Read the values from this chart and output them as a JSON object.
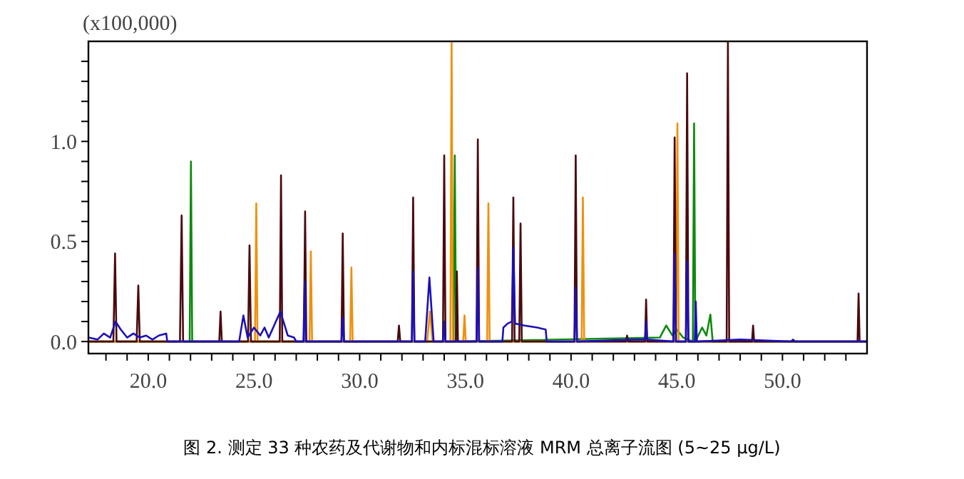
{
  "chart_data": {
    "type": "line",
    "title": "图 2. 测定 33 种农药及代谢物和内标混标溶液 MRM 总离子流图 (5~25 μg/L)",
    "ylabel": "(x100,000)",
    "xlim": [
      17.17,
      54.0
    ],
    "ylim": [
      -0.06,
      1.5
    ],
    "xticks": [
      {
        "value": 18,
        "label": null
      },
      {
        "value": 19,
        "label": null
      },
      {
        "value": 20,
        "label": "20.0"
      },
      {
        "value": 21,
        "label": null
      },
      {
        "value": 22,
        "label": null
      },
      {
        "value": 23,
        "label": null
      },
      {
        "value": 24,
        "label": null
      },
      {
        "value": 25,
        "label": "25.0"
      },
      {
        "value": 26,
        "label": null
      },
      {
        "value": 27,
        "label": null
      },
      {
        "value": 28,
        "label": null
      },
      {
        "value": 29,
        "label": null
      },
      {
        "value": 30,
        "label": "30.0"
      },
      {
        "value": 31,
        "label": null
      },
      {
        "value": 32,
        "label": null
      },
      {
        "value": 33,
        "label": null
      },
      {
        "value": 34,
        "label": null
      },
      {
        "value": 35,
        "label": "35.0"
      },
      {
        "value": 36,
        "label": null
      },
      {
        "value": 37,
        "label": null
      },
      {
        "value": 38,
        "label": null
      },
      {
        "value": 39,
        "label": null
      },
      {
        "value": 40,
        "label": "40.0"
      },
      {
        "value": 41,
        "label": null
      },
      {
        "value": 42,
        "label": null
      },
      {
        "value": 43,
        "label": null
      },
      {
        "value": 44,
        "label": null
      },
      {
        "value": 45,
        "label": "45.0"
      },
      {
        "value": 46,
        "label": null
      },
      {
        "value": 47,
        "label": null
      },
      {
        "value": 48,
        "label": null
      },
      {
        "value": 49,
        "label": null
      },
      {
        "value": 50,
        "label": "50.0"
      },
      {
        "value": 51,
        "label": null
      },
      {
        "value": 52,
        "label": null
      },
      {
        "value": 53,
        "label": null
      }
    ],
    "yticks": [
      {
        "value": 0,
        "label": "0.0"
      },
      {
        "value": 0.1,
        "label": null
      },
      {
        "value": 0.2,
        "label": null
      },
      {
        "value": 0.3,
        "label": null
      },
      {
        "value": 0.4,
        "label": null
      },
      {
        "value": 0.5,
        "label": "0.5"
      },
      {
        "value": 0.6,
        "label": null
      },
      {
        "value": 0.7,
        "label": null
      },
      {
        "value": 0.8,
        "label": null
      },
      {
        "value": 0.9,
        "label": null
      },
      {
        "value": 1.0,
        "label": "1.0"
      },
      {
        "value": 1.1,
        "label": null
      },
      {
        "value": 1.2,
        "label": null
      },
      {
        "value": 1.3,
        "label": null
      },
      {
        "value": 1.4,
        "label": null
      }
    ],
    "line_style": "solid",
    "series": [
      {
        "color": "#1c10b8",
        "x": [
          17.17,
          17.6,
          17.9,
          18.2,
          18.45,
          18.7,
          19.0,
          19.3,
          19.6,
          19.9,
          20.2,
          20.5,
          20.85,
          20.9,
          24.3,
          24.5,
          24.7,
          25.0,
          25.3,
          25.5,
          25.7,
          26.25,
          26.6,
          26.9,
          27.0,
          27.34,
          27.4,
          27.46,
          29.14,
          29.2,
          29.26,
          32.47,
          32.53,
          32.59,
          33.1,
          33.3,
          33.5,
          33.94,
          34.0,
          34.06,
          35.53,
          35.59,
          35.65,
          36.75,
          36.8,
          37.0,
          37.2,
          37.27,
          37.35,
          37.8,
          38.4,
          38.8,
          38.85,
          40.16,
          40.22,
          40.28,
          43.0,
          43.5,
          43.55,
          43.6,
          44.84,
          44.9,
          44.96,
          45.43,
          45.49,
          45.55,
          45.85,
          45.9,
          45.95,
          48.0,
          50.4,
          50.5,
          50.6,
          54.0
        ],
        "values": [
          0.02,
          0.01,
          0.04,
          0.02,
          0.1,
          0.06,
          0.02,
          0.04,
          0.02,
          0.03,
          0.01,
          0.03,
          0.04,
          0,
          0,
          0.13,
          0.02,
          0.07,
          0.03,
          0.07,
          0.02,
          0.15,
          0.03,
          0.02,
          0,
          0,
          0.3,
          0,
          0,
          0.12,
          0,
          0,
          0.35,
          0,
          0,
          0.32,
          0,
          0,
          0.1,
          0,
          0,
          0.37,
          0,
          0,
          0.07,
          0.09,
          0.1,
          0.47,
          0.09,
          0.08,
          0.07,
          0.06,
          0,
          0,
          0.27,
          0,
          0.01,
          0.01,
          0.1,
          0.01,
          0,
          0.44,
          0,
          0,
          0.4,
          0,
          0,
          0.2,
          0,
          0.01,
          0,
          0.01,
          0,
          0
        ]
      },
      {
        "color": "#0e8a0e",
        "x": [
          17.17,
          21.96,
          22.02,
          22.08,
          34.44,
          34.5,
          34.56,
          44.2,
          44.5,
          44.8,
          45.0,
          45.3,
          45.76,
          45.82,
          45.88,
          46.2,
          46.4,
          46.59,
          46.7,
          54.0
        ],
        "values": [
          0,
          0,
          0.9,
          0,
          0,
          0.93,
          0,
          0.02,
          0.08,
          0.03,
          0.06,
          0.02,
          0,
          1.09,
          0,
          0.07,
          0.03,
          0.135,
          0,
          0
        ]
      },
      {
        "color": "#f0900c",
        "x": [
          17.17,
          25.05,
          25.11,
          25.17,
          27.63,
          27.69,
          27.75,
          29.55,
          29.61,
          29.67,
          33.2,
          33.32,
          33.45,
          34.29,
          34.35,
          34.41,
          34.9,
          34.96,
          35.02,
          36.03,
          36.09,
          36.15,
          40.5,
          40.56,
          40.62,
          44.97,
          45.03,
          45.09,
          54.0
        ],
        "values": [
          0,
          0,
          0.69,
          0,
          0,
          0.45,
          0,
          0,
          0.37,
          0,
          0,
          0.15,
          0,
          0,
          1.5,
          0,
          0,
          0.13,
          0,
          0,
          0.69,
          0,
          0,
          0.72,
          0,
          0,
          1.09,
          0,
          0
        ]
      },
      {
        "color": "#4a0a0e",
        "x": [
          17.17,
          18.35,
          18.43,
          18.5,
          19.45,
          19.53,
          19.6,
          21.5,
          21.58,
          21.65,
          23.36,
          23.42,
          23.48,
          24.72,
          24.79,
          24.86,
          26.22,
          26.28,
          26.34,
          27.36,
          27.42,
          27.48,
          29.14,
          29.2,
          29.26,
          31.8,
          31.86,
          31.92,
          32.47,
          32.53,
          32.59,
          33.94,
          34.0,
          34.06,
          34.55,
          34.6,
          34.65,
          35.53,
          35.59,
          35.65,
          37.21,
          37.27,
          37.33,
          37.55,
          37.61,
          37.67,
          40.16,
          40.22,
          40.28,
          42.6,
          42.65,
          42.7,
          43.5,
          43.55,
          43.6,
          44.84,
          44.9,
          44.96,
          45.43,
          45.49,
          45.55,
          47.36,
          47.42,
          47.48,
          48.56,
          48.61,
          48.66,
          53.55,
          53.6,
          53.65,
          54.0
        ],
        "values": [
          0,
          0,
          0.44,
          0,
          0,
          0.28,
          0,
          0,
          0.63,
          0,
          0,
          0.15,
          0,
          0,
          0.48,
          0,
          0,
          0.83,
          0,
          0,
          0.65,
          0,
          0,
          0.54,
          0,
          0,
          0.08,
          0,
          0,
          0.72,
          0,
          0,
          0.93,
          0,
          0,
          0.35,
          0,
          0,
          1.01,
          0,
          0,
          0.72,
          0,
          0,
          0.59,
          0,
          0,
          0.93,
          0,
          0,
          0.03,
          0,
          0,
          0.21,
          0,
          0,
          1.02,
          0,
          0,
          1.34,
          0,
          0,
          1.5,
          0,
          0,
          0.08,
          0,
          0,
          0.24,
          0,
          0
        ]
      }
    ]
  }
}
